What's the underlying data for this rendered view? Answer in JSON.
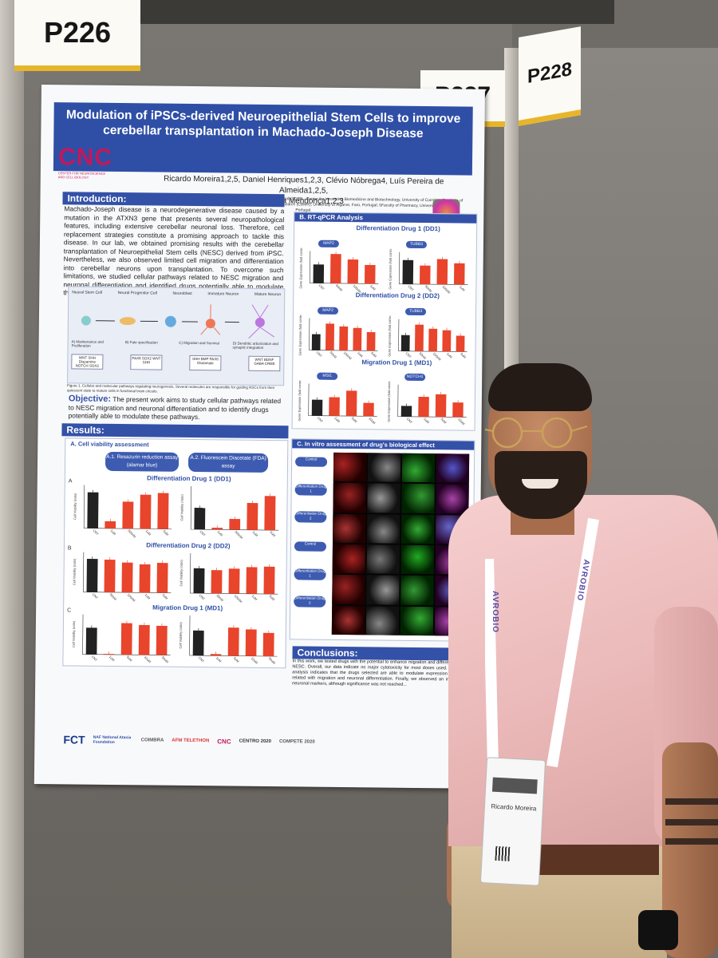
{
  "booth": {
    "left_label": "P226",
    "center_label": "P227",
    "right_label": "P228"
  },
  "poster": {
    "title": "Modulation of iPSCs-derived Neuroepithelial Stem Cells to improve cerebellar transplantation in Machado-Joseph Disease",
    "authors_line1": "Ricardo Moreira1,2,5, Daniel Henriques1,2,3, Clévio Nóbrega4, Luís Pereira de Almeida1,2,5,",
    "authors_line2": "Liliana Mendonça1,2,3",
    "affiliations": "1CNC - Center for Neuroscience and Cell Biology, University of Coimbra, Portugal; 2CIBB - Center for Innovative Biomedicine and Biotechnology, University of Coimbra; 3Institute of Interdisciplinary Research, University of Coimbra; 4Center for Biomedical Research (CBMR), University of Algarve, Faro, Portugal; 5Faculty of Pharmacy, University of Coimbra, Portugal.",
    "logo_text": "CNC",
    "logo_sub": "CENTER FOR NEUROSCIENCE AND CELL BIOLOGY",
    "intro": {
      "heading": "Introduction:",
      "text": "Machado-Joseph disease is a neurodegenerative disease caused by a mutation in the ATXN3 gene that presents several neuropathological features, including extensive cerebellar neuronal loss. Therefore, cell replacement strategies constitute a promising approach to tackle this disease. In our lab, we obtained promising results with the cerebellar transplantation of Neuroepithelial Stem cells (NESC) derived from iPSC. Nevertheless, we also observed limited cell migration and differentiation into cerebellar neurons upon transplantation. To overcome such limitations, we studied cellular pathways related to NESC migration and neuronal differentiation and identified drugs potentially able to modulate these pathways."
    },
    "fig1": {
      "stages": [
        "Neural Stem Cell",
        "Neural Progenitor Cell",
        "Neuroblast",
        "Immature Neuron",
        "Mature Neuron"
      ],
      "steps": [
        "A) Maintenance and Proliferation",
        "B) Fate specification",
        "C) Migration and Survival",
        "D) Dendritic arborization and synaptic integration"
      ],
      "molecules": [
        "WNT SHH Dispamine NOTCH SOX2",
        "PAX6 SOX2 WNT SHH",
        "SHH BMP PAX6 Glutamate",
        "WNT BDNF GABA CREB"
      ],
      "caption": "Figure 1. Cellular and molecular pathways regulating neurogenesis. Several molecules are responsible for guiding NSCs from their quiescent state to mature cells in functional brain circuits."
    },
    "objective": {
      "heading": "Objective:",
      "text": "The present work aims to study cellular pathways related to NESC migration and neuronal differentiation and to identify drugs potentially able to modulate these pathways."
    },
    "results": {
      "heading": "Results:",
      "sub_a": "A. Cell viability assessment",
      "assay1": "A.1. Resazurin reduction assay (alamar blue)",
      "assay2": "A.2. Fluorescein Diacetate (FDA) assay",
      "groups": [
        "Differentiation Drug 1 (DD1)",
        "Differentiation Drug 2 (DD2)",
        "Migration Drug 1 (MD1)"
      ],
      "panel_letters": [
        "A",
        "B",
        "C"
      ],
      "ylabel": "Cell Viability (ratio)"
    },
    "qpcr": {
      "heading": "B. RT-qPCR Analysis",
      "groups": [
        "Differentiation Drug 1 (DD1)",
        "Differentiation Drug 2 (DD2)",
        "Migration Drug 1 (MD1)"
      ],
      "genes_left": [
        "MAP2",
        "MAP2",
        "MSI1"
      ],
      "genes_right": [
        "TUBB3",
        "TUBB3",
        "NOTCH1"
      ],
      "ylabel": "Gene Expression (fold control)"
    },
    "invitro": {
      "heading": "C. In vitro assessment of drug's biological effect",
      "rows": [
        "Control",
        "Differentiation Drug 1",
        "Differentiation Drug 2",
        "Control",
        "Differentiation Drug 1",
        "Differentiation Drug 2"
      ]
    },
    "conclusions": {
      "heading": "Conclusions:",
      "text": "In this work, we tested drugs with the potential to enhance migration and differentiation of NESC. Overall, our data indicate no major cytotoxicity for most doses used. RT-qPCR analysis indicates that the drugs selected are able to modulate expression of genes related with migration and neuronal differentiation. Finally, we observed an increase in neuronal markers, although significance was not reached..."
    },
    "sponsors": [
      "FCT",
      "NAF National Ataxia Foundation",
      "COIMBRA",
      "AFM TELETHON",
      "CNC",
      "CENTRO 2020",
      "COMPETE 2020"
    ]
  },
  "person": {
    "lanyard_text": "AVROBIO",
    "badge_name": "Ricardo Moreira"
  },
  "chart_data": [
    {
      "type": "bar",
      "title": "Differentiation Drug 1 (DD1)",
      "panel": "A.1",
      "ylabel": "Cell Viability (ratio)",
      "categories": [
        "CNT",
        "1uM",
        "500nM",
        "1uM",
        "5uM"
      ],
      "values": [
        1.0,
        0.2,
        0.75,
        0.95,
        1.0
      ],
      "colors": [
        "#222222",
        "#e8452c",
        "#e8452c",
        "#e8452c",
        "#e8452c"
      ]
    },
    {
      "type": "bar",
      "title": "Differentiation Drug 1 (DD1)",
      "panel": "A.2",
      "ylabel": "Cell Viability (ratio)",
      "categories": [
        "CNT",
        "1uM",
        "500nM",
        "1uM",
        "5uM"
      ],
      "values": [
        0.6,
        0.05,
        0.3,
        0.75,
        0.95
      ],
      "colors": [
        "#222222",
        "#e8452c",
        "#e8452c",
        "#e8452c",
        "#e8452c"
      ]
    },
    {
      "type": "bar",
      "title": "Differentiation Drug 2 (DD2)",
      "panel": "B.1",
      "ylabel": "Cell Viability (ratio)",
      "categories": [
        "CNT",
        "50nM",
        "100nM",
        "1uM",
        "5uM"
      ],
      "values": [
        1.0,
        0.98,
        0.9,
        0.85,
        0.9
      ],
      "colors": [
        "#222222",
        "#e8452c",
        "#e8452c",
        "#e8452c",
        "#e8452c"
      ]
    },
    {
      "type": "bar",
      "title": "Differentiation Drug 2 (DD2)",
      "panel": "B.2",
      "ylabel": "Cell Viability (ratio)",
      "categories": [
        "CNT",
        "50nM",
        "100nM",
        "1uM",
        "5uM"
      ],
      "values": [
        0.75,
        0.7,
        0.75,
        0.8,
        0.82
      ],
      "colors": [
        "#222222",
        "#e8452c",
        "#e8452c",
        "#e8452c",
        "#e8452c"
      ]
    },
    {
      "type": "bar",
      "title": "Migration Drug 1 (MD1)",
      "panel": "C.1",
      "ylabel": "Cell Viability (ratio)",
      "categories": [
        "CNT",
        "1uM",
        "5uM",
        "10uM",
        "50uM"
      ],
      "values": [
        0.8,
        0.02,
        0.95,
        0.9,
        0.88
      ],
      "colors": [
        "#222222",
        "#e8452c",
        "#e8452c",
        "#e8452c",
        "#e8452c"
      ]
    },
    {
      "type": "bar",
      "title": "Migration Drug 1 (MD1)",
      "panel": "C.2",
      "ylabel": "Cell Viability (ratio)",
      "categories": [
        "CNT",
        "1uM",
        "5uM",
        "10uM",
        "50uM"
      ],
      "values": [
        0.75,
        0.05,
        0.85,
        0.8,
        0.7
      ],
      "colors": [
        "#222222",
        "#e8452c",
        "#e8452c",
        "#e8452c",
        "#e8452c"
      ]
    },
    {
      "type": "bar",
      "title": "MAP2",
      "panel": "B.DD1.L",
      "ylabel": "Gene Expression (fold control)",
      "categories": [
        "CNT",
        "50nM",
        "100nM",
        "1uM"
      ],
      "values": [
        0.7,
        1.1,
        0.9,
        0.7
      ],
      "colors": [
        "#222222",
        "#e8452c",
        "#e8452c",
        "#e8452c"
      ]
    },
    {
      "type": "bar",
      "title": "TUBB3",
      "panel": "B.DD1.R",
      "ylabel": "Gene Expression (fold control)",
      "categories": [
        "CNT",
        "50nM",
        "100nM",
        "1uM"
      ],
      "values": [
        0.9,
        0.7,
        0.95,
        0.8
      ],
      "colors": [
        "#222222",
        "#e8452c",
        "#e8452c",
        "#e8452c"
      ]
    },
    {
      "type": "bar",
      "title": "MAP2",
      "panel": "B.DD2.L",
      "ylabel": "Gene Expression (fold control)",
      "categories": [
        "CNT",
        "50nM",
        "100nM",
        "1uM",
        "5uM"
      ],
      "values": [
        0.6,
        1.0,
        0.9,
        0.85,
        0.7
      ],
      "colors": [
        "#222222",
        "#e8452c",
        "#e8452c",
        "#e8452c",
        "#e8452c"
      ]
    },
    {
      "type": "bar",
      "title": "TUBB3",
      "panel": "B.DD2.R",
      "ylabel": "Gene Expression (fold control)",
      "categories": [
        "CNT",
        "50nM",
        "100nM",
        "1uM",
        "5uM"
      ],
      "values": [
        0.6,
        1.0,
        0.85,
        0.8,
        0.6
      ],
      "colors": [
        "#222222",
        "#e8452c",
        "#e8452c",
        "#e8452c",
        "#e8452c"
      ]
    },
    {
      "type": "bar",
      "title": "MSI1",
      "panel": "B.MD1.L",
      "ylabel": "Gene Expression (fold control)",
      "categories": [
        "CNT",
        "1uM",
        "5uM",
        "10uM"
      ],
      "values": [
        0.6,
        0.7,
        0.95,
        0.5
      ],
      "colors": [
        "#222222",
        "#e8452c",
        "#e8452c",
        "#e8452c"
      ]
    },
    {
      "type": "bar",
      "title": "NOTCH1",
      "panel": "B.MD1.R",
      "ylabel": "Gene Expression (fold control)",
      "categories": [
        "CNT",
        "1uM",
        "5uM",
        "10uM"
      ],
      "values": [
        0.4,
        0.75,
        0.85,
        0.55
      ],
      "colors": [
        "#222222",
        "#e8452c",
        "#e8452c",
        "#e8452c"
      ]
    }
  ]
}
